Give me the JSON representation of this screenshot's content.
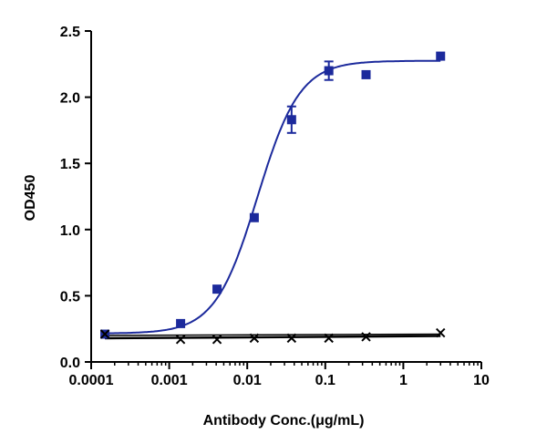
{
  "chart_data": {
    "type": "scatter",
    "title": "",
    "xlabel": "Antibody Conc.(μg/mL)",
    "ylabel": "OD450",
    "xscale": "log",
    "xlim": [
      0.0001,
      10
    ],
    "ylim": [
      0,
      2.5
    ],
    "xticks": [
      "0.0001",
      "0.001",
      "0.01",
      "0.1",
      "1",
      "10"
    ],
    "yticks": [
      "0.0",
      "0.5",
      "1.0",
      "1.5",
      "2.0",
      "2.5"
    ],
    "grid": false,
    "legend": "none",
    "series": [
      {
        "marker": "square",
        "color": "#1c2a9c",
        "fit": "four-parameter logistic",
        "points": [
          {
            "x": 0.00015,
            "y": 0.21,
            "err": 0.01
          },
          {
            "x": 0.0014,
            "y": 0.29,
            "err": 0.01
          },
          {
            "x": 0.0041,
            "y": 0.55,
            "err": 0.01
          },
          {
            "x": 0.0123,
            "y": 1.09,
            "err": 0.01
          },
          {
            "x": 0.037,
            "y": 1.83,
            "err": 0.1
          },
          {
            "x": 0.111,
            "y": 2.2,
            "err": 0.07
          },
          {
            "x": 0.333,
            "y": 2.17,
            "err": 0.02
          },
          {
            "x": 3.0,
            "y": 2.31,
            "err": 0.01
          }
        ]
      },
      {
        "marker": "cross",
        "color": "#000000",
        "fit": "linear",
        "points": [
          {
            "x": 0.00015,
            "y": 0.21
          },
          {
            "x": 0.0014,
            "y": 0.17
          },
          {
            "x": 0.0041,
            "y": 0.17
          },
          {
            "x": 0.0123,
            "y": 0.18
          },
          {
            "x": 0.037,
            "y": 0.18
          },
          {
            "x": 0.111,
            "y": 0.18
          },
          {
            "x": 0.333,
            "y": 0.19
          },
          {
            "x": 3.0,
            "y": 0.22
          }
        ]
      }
    ]
  }
}
